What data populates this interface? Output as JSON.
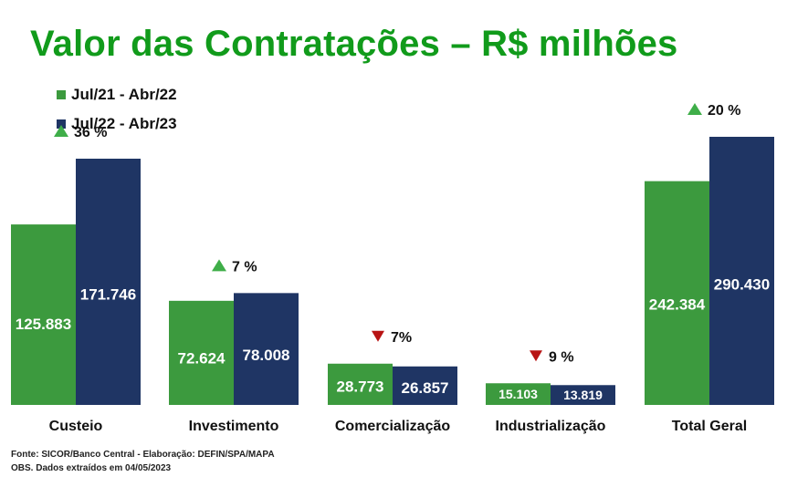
{
  "page": {
    "title": "Valor das Contratações – R$ milhões",
    "footer": {
      "source": "Fonte: SICOR/Banco Central - Elaboração: DEFIN/SPA/MAPA",
      "note": "OBS. Dados extraídos em 04/05/2023"
    }
  },
  "colors": {
    "title": "#119b1b",
    "series_1": "#3c9a3e",
    "series_2": "#1f3564",
    "up_arrow": "#3fae49",
    "down_arrow": "#b81414"
  },
  "chart_data": {
    "type": "bar",
    "categories": [
      "Custeio",
      "Investimento",
      "Comercialização",
      "Industrialização",
      "Total Geral"
    ],
    "series": [
      {
        "name": "Jul/21 - Abr/22",
        "values": [
          125883,
          72624,
          28773,
          15103,
          242384
        ],
        "labels": [
          "125.883",
          "72.624",
          "28.773",
          "15.103",
          "242.384"
        ]
      },
      {
        "name": "Jul/22 - Abr/23",
        "values": [
          171746,
          78008,
          26857,
          13819,
          290430
        ],
        "labels": [
          "171.746",
          "78.008",
          "26.857",
          "13.819",
          "290.430"
        ]
      }
    ],
    "changes": [
      {
        "direction": "up",
        "label": "36 %"
      },
      {
        "direction": "up",
        "label": "7 %"
      },
      {
        "direction": "down",
        "label": "7%"
      },
      {
        "direction": "down",
        "label": "9 %"
      },
      {
        "direction": "up",
        "label": "20 %"
      }
    ],
    "legend_position": "top-left",
    "grid": false,
    "scale_note": "Total Geral group uses a separate scale"
  }
}
